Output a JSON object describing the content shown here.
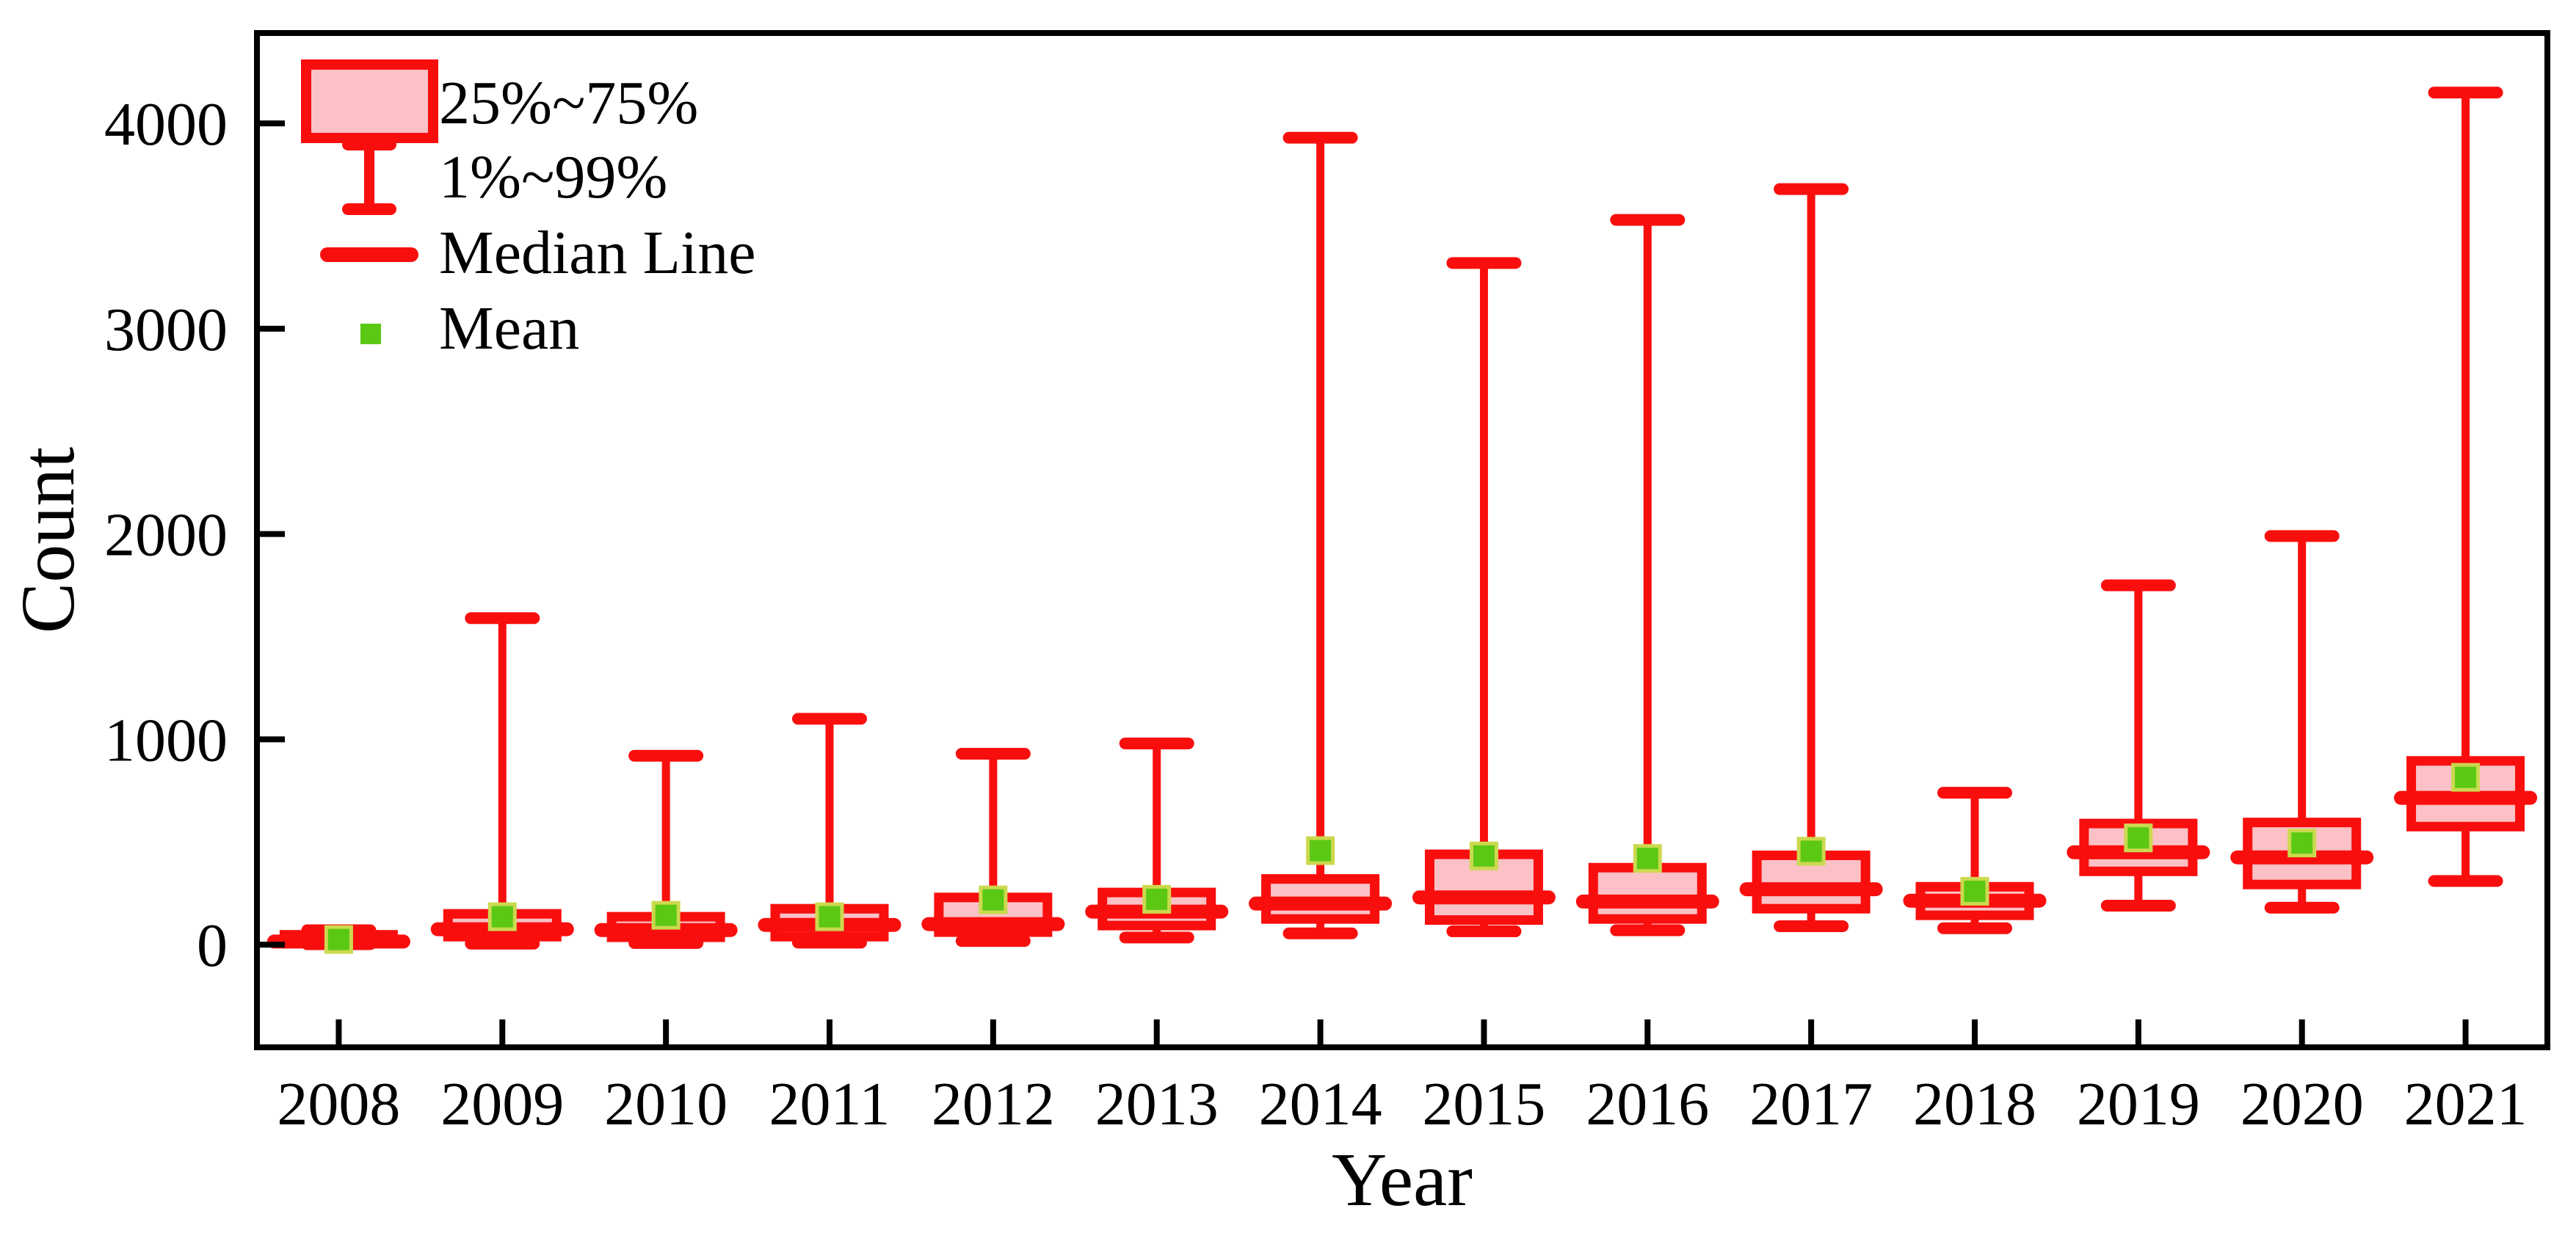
{
  "chart_data": {
    "type": "box",
    "title": "",
    "xlabel": "Year",
    "ylabel": "Count",
    "categories": [
      "2008",
      "2009",
      "2010",
      "2011",
      "2012",
      "2013",
      "2014",
      "2015",
      "2016",
      "2017",
      "2018",
      "2019",
      "2020",
      "2021"
    ],
    "yticks": [
      0,
      1000,
      2000,
      3000,
      4000
    ],
    "ylim": [
      -500,
      4440
    ],
    "grid": false,
    "tick_direction": "in",
    "legend": {
      "position": "top-left",
      "entries": [
        {
          "icon": "box-icon",
          "label": "25%~75%"
        },
        {
          "icon": "whisker-icon",
          "label": "1%~99%"
        },
        {
          "icon": "median-line-icon",
          "label": "Median Line"
        },
        {
          "icon": "mean-square-icon",
          "label": "Mean"
        }
      ]
    },
    "series": [
      {
        "label": "2008",
        "low": 2,
        "q1": 6,
        "median": 15,
        "q3": 48,
        "high": 70,
        "mean": 25
      },
      {
        "label": "2009",
        "low": 5,
        "q1": 39,
        "median": 75,
        "q3": 150,
        "high": 1590,
        "mean": 136
      },
      {
        "label": "2010",
        "low": 8,
        "q1": 36,
        "median": 71,
        "q3": 136,
        "high": 920,
        "mean": 143
      },
      {
        "label": "2011",
        "low": 10,
        "q1": 39,
        "median": 96,
        "q3": 175,
        "high": 1100,
        "mean": 136
      },
      {
        "label": "2012",
        "low": 18,
        "q1": 61,
        "median": 100,
        "q3": 230,
        "high": 930,
        "mean": 218
      },
      {
        "label": "2013",
        "low": 35,
        "q1": 93,
        "median": 161,
        "q3": 254,
        "high": 980,
        "mean": 221
      },
      {
        "label": "2014",
        "low": 55,
        "q1": 125,
        "median": 200,
        "q3": 320,
        "high": 3930,
        "mean": 458
      },
      {
        "label": "2015",
        "low": 65,
        "q1": 120,
        "median": 230,
        "q3": 440,
        "high": 3320,
        "mean": 432
      },
      {
        "label": "2016",
        "low": 70,
        "q1": 125,
        "median": 210,
        "q3": 375,
        "high": 3530,
        "mean": 420
      },
      {
        "label": "2017",
        "low": 90,
        "q1": 175,
        "median": 270,
        "q3": 435,
        "high": 3680,
        "mean": 455
      },
      {
        "label": "2018",
        "low": 80,
        "q1": 143,
        "median": 214,
        "q3": 282,
        "high": 740,
        "mean": 260
      },
      {
        "label": "2019",
        "low": 190,
        "q1": 357,
        "median": 450,
        "q3": 590,
        "high": 1750,
        "mean": 520
      },
      {
        "label": "2020",
        "low": 180,
        "q1": 293,
        "median": 425,
        "q3": 595,
        "high": 1990,
        "mean": 495
      },
      {
        "label": "2021",
        "low": 310,
        "q1": 575,
        "median": 715,
        "q3": 895,
        "high": 4150,
        "mean": 815
      }
    ],
    "colors": {
      "box_edge": "#F90E0E",
      "box_fill": "#FBC1C6",
      "median": "#F90E0E",
      "whisker": "#F90E0E",
      "mean_fill": "#5BC814",
      "mean_edge": "#CBD94F",
      "axis": "#000000",
      "background": "#FFFFFF"
    }
  }
}
